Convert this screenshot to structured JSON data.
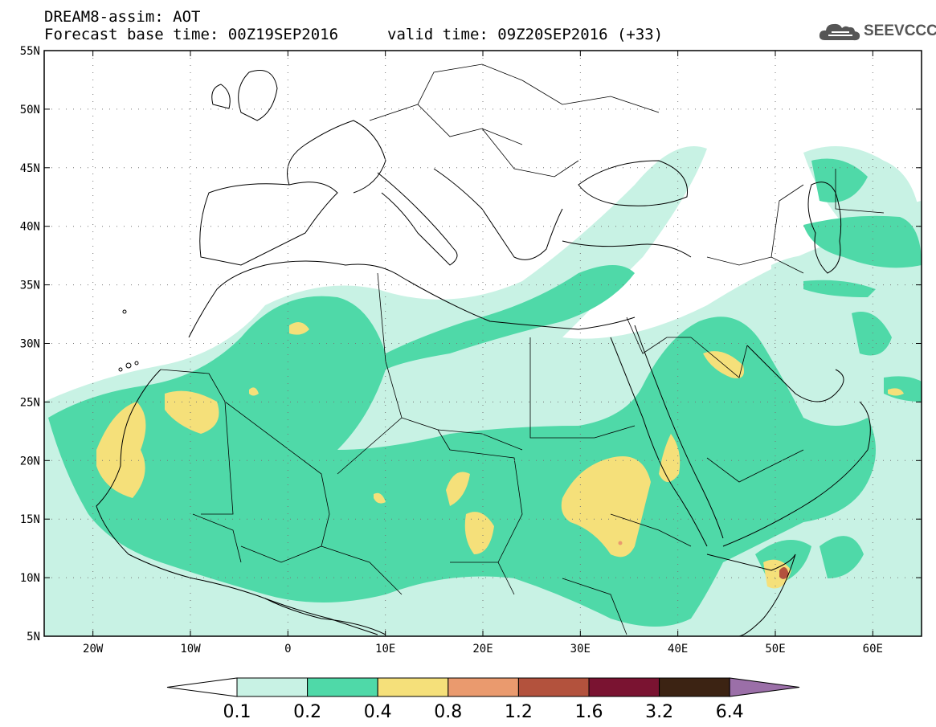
{
  "title": {
    "line1": "DREAM8-assim: AOT",
    "line2": "Forecast base time: 00Z19SEP2016",
    "valid": "valid time: 09Z20SEP2016 (+33)"
  },
  "logo": {
    "text": "SEEVCCC",
    "icon": "cloud-logo-icon"
  },
  "map": {
    "lon_range": [
      -25,
      65
    ],
    "lat_range": [
      5,
      55
    ],
    "lat_ticks": [
      {
        "value": 55,
        "label": "55N"
      },
      {
        "value": 50,
        "label": "50N"
      },
      {
        "value": 45,
        "label": "45N"
      },
      {
        "value": 40,
        "label": "40N"
      },
      {
        "value": 35,
        "label": "35N"
      },
      {
        "value": 30,
        "label": "30N"
      },
      {
        "value": 25,
        "label": "25N"
      },
      {
        "value": 20,
        "label": "20N"
      },
      {
        "value": 15,
        "label": "15N"
      },
      {
        "value": 10,
        "label": "10N"
      },
      {
        "value": 5,
        "label": "5N"
      }
    ],
    "lon_ticks": [
      {
        "value": -20,
        "label": "20W"
      },
      {
        "value": -10,
        "label": "10W"
      },
      {
        "value": 0,
        "label": "0"
      },
      {
        "value": 10,
        "label": "10E"
      },
      {
        "value": 20,
        "label": "20E"
      },
      {
        "value": 30,
        "label": "30E"
      },
      {
        "value": 40,
        "label": "40E"
      },
      {
        "value": 50,
        "label": "50E"
      },
      {
        "value": 60,
        "label": "60E"
      }
    ],
    "grid": "dotted"
  },
  "colorbar": {
    "labels": [
      "0.1",
      "0.2",
      "0.4",
      "0.8",
      "1.2",
      "1.6",
      "3.2",
      "6.4"
    ],
    "colors": [
      "#ffffff",
      "#c8f2e4",
      "#4fd9a8",
      "#f5e07a",
      "#ea9a6e",
      "#b3523d",
      "#7a1331",
      "#3c2313",
      "#9b6fa8"
    ]
  }
}
